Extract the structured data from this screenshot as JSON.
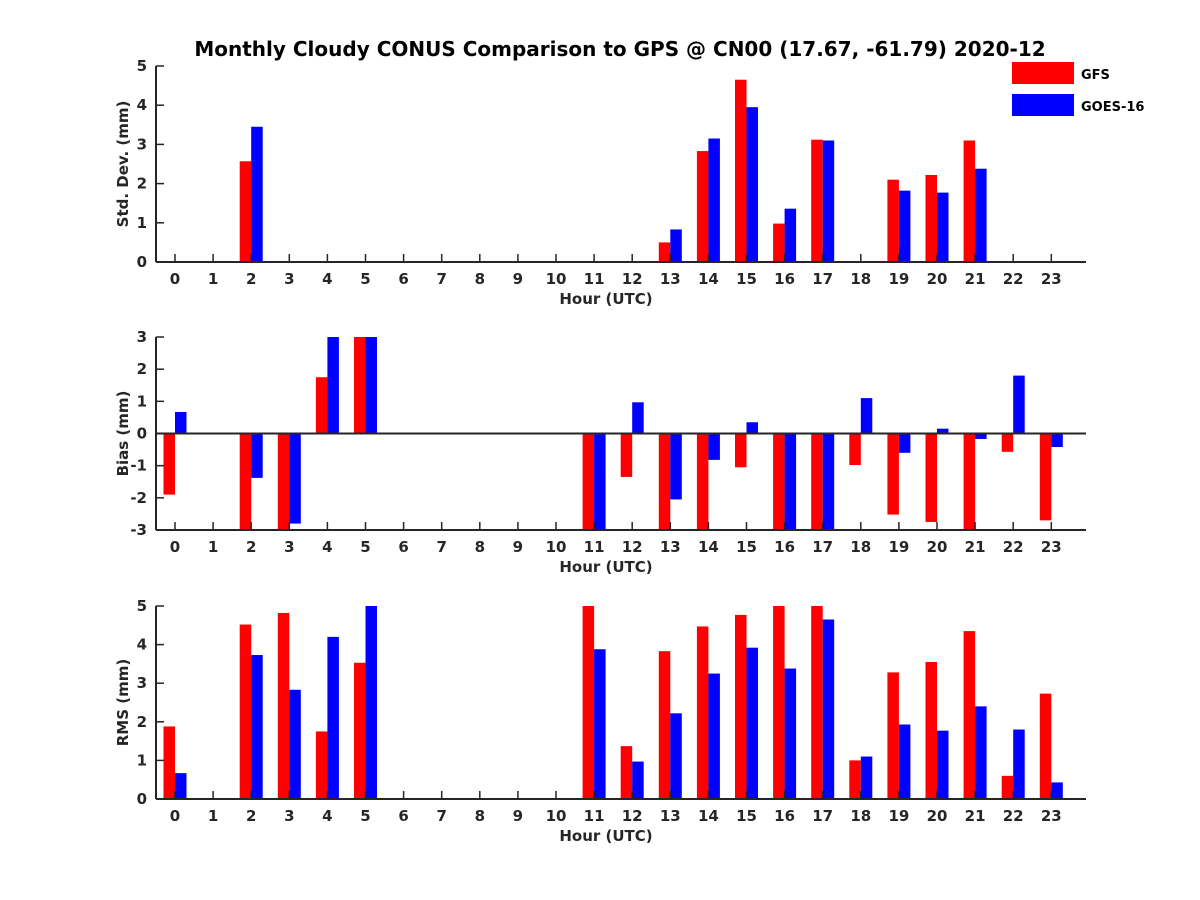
{
  "title": "Monthly Cloudy CONUS Comparison to GPS @ CN00 (17.67, -61.79) 2020-12",
  "legend": [
    {
      "name": "GFS",
      "color": "#ff0000"
    },
    {
      "name": "GOES-16",
      "color": "#0000ff"
    }
  ],
  "chart_data": [
    {
      "type": "bar",
      "xlabel": "Hour (UTC)",
      "ylabel": "Std. Dev. (mm)",
      "ylim": [
        0,
        5
      ],
      "yticks": [
        0,
        1,
        2,
        3,
        4,
        5
      ],
      "categories": [
        "0",
        "1",
        "2",
        "3",
        "4",
        "5",
        "6",
        "7",
        "8",
        "9",
        "10",
        "11",
        "12",
        "13",
        "14",
        "15",
        "16",
        "17",
        "18",
        "19",
        "20",
        "21",
        "22",
        "23"
      ],
      "series": [
        {
          "name": "GFS",
          "color": "#ff0000",
          "values": [
            null,
            null,
            2.57,
            null,
            null,
            null,
            null,
            null,
            null,
            null,
            null,
            null,
            null,
            0.5,
            2.83,
            4.65,
            0.98,
            3.12,
            null,
            2.1,
            2.22,
            3.1,
            null,
            null
          ]
        },
        {
          "name": "GOES-16",
          "color": "#0000ff",
          "values": [
            null,
            null,
            3.45,
            null,
            null,
            null,
            null,
            null,
            null,
            null,
            null,
            null,
            null,
            0.83,
            3.15,
            3.95,
            1.36,
            3.1,
            null,
            1.82,
            1.77,
            2.38,
            null,
            null
          ]
        }
      ]
    },
    {
      "type": "bar",
      "xlabel": "Hour (UTC)",
      "ylabel": "Bias (mm)",
      "ylim": [
        -3,
        3
      ],
      "yticks": [
        -3,
        -2,
        -1,
        0,
        1,
        2,
        3
      ],
      "categories": [
        "0",
        "1",
        "2",
        "3",
        "4",
        "5",
        "6",
        "7",
        "8",
        "9",
        "10",
        "11",
        "12",
        "13",
        "14",
        "15",
        "16",
        "17",
        "18",
        "19",
        "20",
        "21",
        "22",
        "23"
      ],
      "series": [
        {
          "name": "GFS",
          "color": "#ff0000",
          "values": [
            -1.9,
            null,
            -3,
            -3,
            1.75,
            3,
            null,
            null,
            null,
            null,
            null,
            -3,
            -1.35,
            -3,
            -3,
            -1.05,
            -3,
            -3,
            -0.98,
            -2.52,
            -2.75,
            -3,
            -0.57,
            -2.7
          ]
        },
        {
          "name": "GOES-16",
          "color": "#0000ff",
          "values": [
            0.67,
            null,
            -1.38,
            -2.8,
            3,
            3,
            null,
            null,
            null,
            null,
            null,
            -3,
            0.97,
            -2.05,
            -0.82,
            0.35,
            -3,
            -3,
            1.1,
            -0.6,
            0.15,
            -0.17,
            1.8,
            -0.42
          ]
        }
      ]
    },
    {
      "type": "bar",
      "xlabel": "Hour (UTC)",
      "ylabel": "RMS (mm)",
      "ylim": [
        0,
        5
      ],
      "yticks": [
        0,
        1,
        2,
        3,
        4,
        5
      ],
      "categories": [
        "0",
        "1",
        "2",
        "3",
        "4",
        "5",
        "6",
        "7",
        "8",
        "9",
        "10",
        "11",
        "12",
        "13",
        "14",
        "15",
        "16",
        "17",
        "18",
        "19",
        "20",
        "21",
        "22",
        "23"
      ],
      "series": [
        {
          "name": "GFS",
          "color": "#ff0000",
          "values": [
            1.88,
            null,
            4.52,
            4.82,
            1.75,
            3.53,
            null,
            null,
            null,
            null,
            null,
            5,
            1.37,
            3.83,
            4.47,
            4.77,
            5,
            5,
            1,
            3.28,
            3.55,
            4.35,
            0.6,
            2.73
          ]
        },
        {
          "name": "GOES-16",
          "color": "#0000ff",
          "values": [
            0.67,
            null,
            3.73,
            2.83,
            4.2,
            5,
            null,
            null,
            null,
            null,
            null,
            3.88,
            0.97,
            2.22,
            3.25,
            3.92,
            3.38,
            4.65,
            1.1,
            1.93,
            1.77,
            2.4,
            1.8,
            0.43
          ]
        }
      ]
    }
  ]
}
